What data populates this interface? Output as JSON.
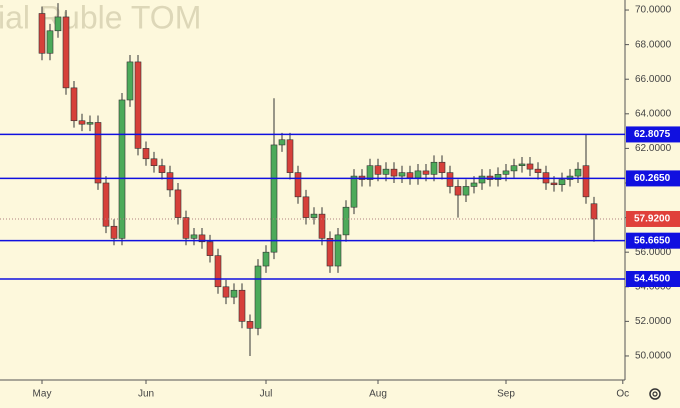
{
  "chart_data": {
    "type": "candlestick",
    "title": "ial Ruble TOM",
    "open": [
      69.8,
      67.5,
      68.8,
      69.6,
      65.5,
      63.6,
      63.4,
      63.5,
      60.0,
      57.5,
      56.8,
      64.8,
      67.0,
      62.0,
      61.4,
      61.0,
      60.6,
      59.6,
      58.0,
      56.8,
      57.0,
      56.6,
      55.8,
      54.0,
      53.4,
      53.8,
      52.0,
      51.6,
      55.2,
      56.0,
      62.2,
      62.5,
      60.6,
      59.2,
      58.0,
      58.2,
      56.8,
      55.2,
      57.0,
      58.6,
      60.4,
      60.2,
      61.0,
      60.5,
      60.8,
      60.4,
      60.6,
      60.3,
      60.7,
      60.5,
      61.2,
      60.6,
      59.8,
      59.3,
      59.8,
      60.0,
      60.4,
      60.2,
      60.5,
      60.7,
      61.0,
      61.1,
      60.8,
      60.6,
      60.0,
      59.9,
      60.2,
      60.4,
      61.0,
      58.8
    ],
    "high": [
      70.2,
      69.2,
      70.4,
      70.0,
      65.9,
      64.0,
      63.9,
      63.9,
      60.4,
      57.9,
      65.2,
      67.4,
      67.4,
      62.4,
      61.8,
      61.4,
      61.0,
      60.0,
      58.4,
      57.4,
      57.4,
      57.0,
      56.2,
      54.4,
      54.2,
      54.2,
      52.4,
      55.6,
      56.4,
      64.9,
      62.9,
      62.9,
      61.0,
      59.6,
      58.6,
      58.6,
      57.2,
      57.4,
      59.0,
      60.8,
      60.8,
      61.4,
      61.4,
      61.2,
      61.2,
      61.0,
      61.0,
      61.1,
      61.1,
      61.6,
      61.6,
      61.0,
      60.2,
      60.2,
      60.4,
      60.8,
      60.8,
      60.9,
      61.1,
      61.4,
      61.5,
      61.5,
      61.2,
      61.0,
      60.4,
      60.6,
      60.8,
      61.2,
      62.8,
      59.2
    ],
    "low": [
      67.1,
      67.1,
      68.4,
      65.1,
      63.2,
      63.0,
      63.0,
      59.6,
      57.1,
      56.4,
      56.4,
      64.4,
      61.6,
      61.0,
      60.6,
      60.2,
      59.2,
      57.6,
      56.4,
      56.4,
      56.2,
      55.4,
      53.6,
      53.0,
      53.0,
      51.6,
      50.0,
      51.2,
      54.8,
      55.6,
      61.8,
      60.2,
      58.8,
      57.6,
      57.6,
      56.4,
      54.8,
      54.8,
      56.6,
      58.2,
      59.8,
      59.8,
      60.1,
      60.1,
      60.0,
      60.0,
      59.9,
      59.9,
      60.1,
      60.1,
      60.2,
      59.4,
      58.0,
      58.9,
      59.4,
      59.6,
      59.8,
      59.8,
      60.1,
      60.3,
      60.6,
      60.4,
      60.2,
      59.6,
      59.5,
      59.5,
      59.8,
      60.0,
      58.8,
      56.6
    ],
    "close": [
      67.5,
      68.8,
      69.6,
      65.5,
      63.6,
      63.4,
      63.5,
      60.0,
      57.5,
      56.8,
      64.8,
      67.0,
      62.0,
      61.4,
      61.0,
      60.6,
      59.6,
      58.0,
      56.8,
      57.0,
      56.6,
      55.8,
      54.0,
      53.4,
      53.8,
      52.0,
      51.6,
      55.2,
      56.0,
      62.2,
      62.5,
      60.6,
      59.2,
      58.0,
      58.2,
      56.8,
      55.2,
      57.0,
      58.6,
      60.4,
      60.2,
      61.0,
      60.5,
      60.8,
      60.4,
      60.6,
      60.3,
      60.7,
      60.5,
      61.2,
      60.6,
      59.8,
      59.3,
      59.8,
      60.0,
      60.4,
      60.2,
      60.5,
      60.7,
      61.0,
      61.1,
      60.8,
      60.6,
      60.0,
      59.9,
      60.2,
      60.4,
      60.8,
      59.2,
      57.92
    ],
    "up_color": "#4caa5a",
    "down_color": "#d6403a",
    "xlim": [
      -5.25,
      72.875
    ],
    "xticks": [
      {
        "value": 0,
        "label": "May"
      },
      {
        "value": 13,
        "label": "Jun"
      },
      {
        "value": 28,
        "label": "Jul"
      },
      {
        "value": 42,
        "label": "Aug"
      },
      {
        "value": 58,
        "label": "Sep"
      },
      {
        "value": 72.6,
        "label": "Oc"
      }
    ],
    "ylim": [
      48.61,
      70.58
    ],
    "yticks": [
      {
        "value": 50,
        "label": "50.0000"
      },
      {
        "value": 52,
        "label": "52.0000"
      },
      {
        "value": 54,
        "label": "54.0000"
      },
      {
        "value": 56,
        "label": "56.0000"
      },
      {
        "value": 58,
        "label": "58.0000"
      },
      {
        "value": 60,
        "label": "60.0000"
      },
      {
        "value": 62,
        "label": "62.0000"
      },
      {
        "value": 64,
        "label": "64.0000"
      },
      {
        "value": 66,
        "label": "66.0000"
      },
      {
        "value": 68,
        "label": "68.0000"
      },
      {
        "value": 70,
        "label": "70.0000"
      }
    ],
    "levels": [
      {
        "value": 62.8075,
        "label": "62.8075"
      },
      {
        "value": 60.265,
        "label": "60.2650"
      },
      {
        "value": 56.665,
        "label": "56.6650"
      },
      {
        "value": 54.45,
        "label": "54.4500"
      }
    ],
    "level_color": "#1010e0",
    "last_price": {
      "value": 57.92,
      "label": "57.9200"
    },
    "last_color": "#e0403a"
  }
}
